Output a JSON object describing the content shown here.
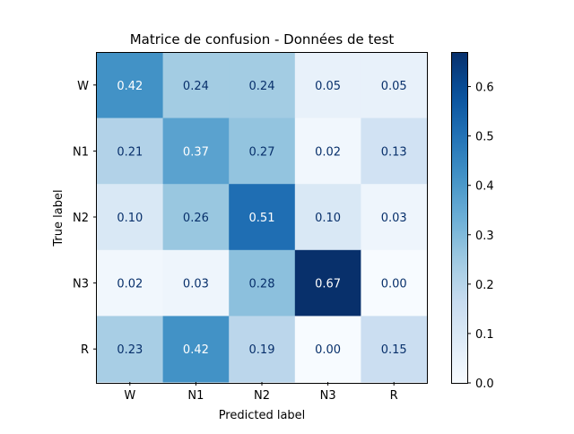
{
  "chart_data": {
    "type": "heatmap",
    "title": "Matrice de confusion - Données de test",
    "xlabel": "Predicted label",
    "ylabel": "True label",
    "x_categories": [
      "W",
      "N1",
      "N2",
      "N3",
      "R"
    ],
    "y_categories": [
      "W",
      "N1",
      "N2",
      "N3",
      "R"
    ],
    "values": [
      [
        0.42,
        0.24,
        0.24,
        0.05,
        0.05
      ],
      [
        0.21,
        0.37,
        0.27,
        0.02,
        0.13
      ],
      [
        0.1,
        0.26,
        0.51,
        0.1,
        0.03
      ],
      [
        0.02,
        0.03,
        0.28,
        0.67,
        0.0
      ],
      [
        0.23,
        0.42,
        0.19,
        0.0,
        0.15
      ]
    ],
    "colormap": "Blues",
    "colorbar": {
      "min": 0.0,
      "max": 0.67,
      "ticks": [
        0.0,
        0.1,
        0.2,
        0.3,
        0.4,
        0.5,
        0.6
      ],
      "tick_labels": [
        "0.0",
        "0.1",
        "0.2",
        "0.3",
        "0.4",
        "0.5",
        "0.6"
      ]
    },
    "value_format": "2 decimals",
    "text_color_light": "#ffffff",
    "text_color_dark": "#08306b"
  }
}
